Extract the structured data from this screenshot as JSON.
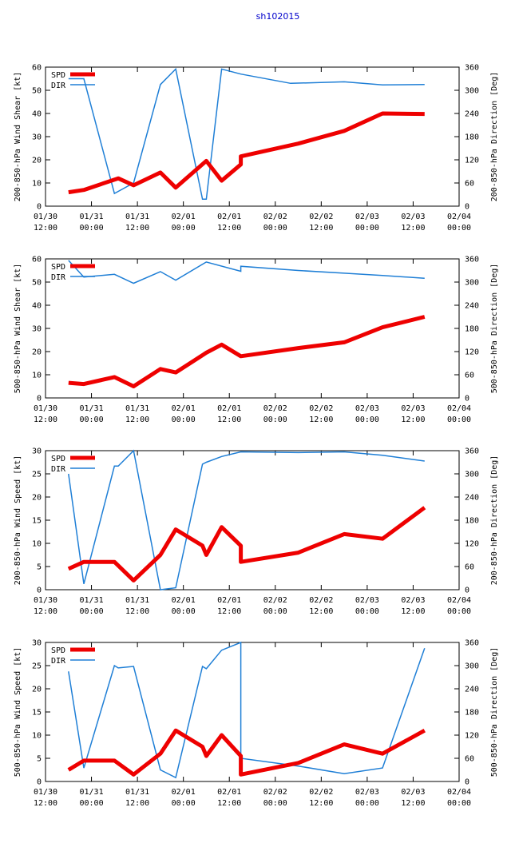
{
  "title": "sh102015",
  "colors": {
    "spd": "#ee0000",
    "dir": "#1f7fd6",
    "title": "#0000cc"
  },
  "x_ticks": [
    {
      "t": 0,
      "date": "01/30",
      "time": "12:00"
    },
    {
      "t": 12,
      "date": "01/31",
      "time": "00:00"
    },
    {
      "t": 24,
      "date": "01/31",
      "time": "12:00"
    },
    {
      "t": 36,
      "date": "02/01",
      "time": "00:00"
    },
    {
      "t": 48,
      "date": "02/01",
      "time": "12:00"
    },
    {
      "t": 60,
      "date": "02/02",
      "time": "00:00"
    },
    {
      "t": 72,
      "date": "02/02",
      "time": "12:00"
    },
    {
      "t": 84,
      "date": "02/03",
      "time": "00:00"
    },
    {
      "t": 96,
      "date": "02/03",
      "time": "12:00"
    },
    {
      "t": 108,
      "date": "02/04",
      "time": "00:00"
    }
  ],
  "chart_data": [
    {
      "type": "line",
      "ylabel": "200-850-hPa Wind Shear [kt]",
      "y2label": "200-850-hPa Direction [Deg]",
      "xlim": [
        0,
        108
      ],
      "ylim": [
        0,
        60
      ],
      "y2lim": [
        0,
        360
      ],
      "yticks": [
        0,
        10,
        20,
        30,
        40,
        50,
        60
      ],
      "y2ticks": [
        0,
        60,
        120,
        180,
        240,
        300,
        360
      ],
      "legend": [
        "SPD",
        "DIR"
      ],
      "spd": [
        [
          6,
          6
        ],
        [
          10,
          7
        ],
        [
          19,
          12
        ],
        [
          23,
          9
        ],
        [
          30,
          14.5
        ],
        [
          34,
          8
        ],
        [
          42,
          19.5
        ],
        [
          46,
          11
        ],
        [
          51,
          18
        ],
        [
          51,
          21.5
        ],
        [
          66,
          27
        ],
        [
          78,
          32.5
        ],
        [
          88,
          40
        ],
        [
          99,
          39.8
        ]
      ],
      "dir": [
        [
          6,
          330
        ],
        [
          10,
          330
        ],
        [
          18,
          33
        ],
        [
          23,
          60
        ],
        [
          30,
          315
        ],
        [
          34,
          355
        ],
        [
          41,
          18
        ],
        [
          42,
          18
        ],
        [
          46,
          355
        ],
        [
          51,
          342
        ],
        [
          64,
          318
        ],
        [
          78,
          322
        ],
        [
          88,
          314
        ],
        [
          99,
          315
        ]
      ]
    },
    {
      "type": "line",
      "ylabel": "500-850-hPa Wind Shear [kt]",
      "y2label": "500-850-hPa Direction [Deg]",
      "xlim": [
        0,
        108
      ],
      "ylim": [
        0,
        60
      ],
      "y2lim": [
        0,
        360
      ],
      "yticks": [
        0,
        10,
        20,
        30,
        40,
        50,
        60
      ],
      "y2ticks": [
        0,
        60,
        120,
        180,
        240,
        300,
        360
      ],
      "legend": [
        "SPD",
        "DIR"
      ],
      "spd": [
        [
          6,
          6.5
        ],
        [
          10,
          6
        ],
        [
          18,
          9
        ],
        [
          23,
          5
        ],
        [
          30,
          12.5
        ],
        [
          34,
          11
        ],
        [
          42,
          19.5
        ],
        [
          46,
          23
        ],
        [
          51,
          18
        ],
        [
          66,
          21.5
        ],
        [
          78,
          24
        ],
        [
          88,
          30.5
        ],
        [
          99,
          35
        ]
      ],
      "dir": [
        [
          6,
          356
        ],
        [
          10,
          313
        ],
        [
          18,
          320
        ],
        [
          23,
          297
        ],
        [
          30,
          327
        ],
        [
          34,
          305
        ],
        [
          42,
          352
        ],
        [
          51,
          328
        ],
        [
          51,
          341
        ],
        [
          66,
          330
        ],
        [
          78,
          323
        ],
        [
          88,
          317
        ],
        [
          99,
          310
        ]
      ]
    },
    {
      "type": "line",
      "ylabel": "200-850-hPa Wind Speed [kt]",
      "y2label": "200-850-hPa Direction [Deg]",
      "xlim": [
        0,
        108
      ],
      "ylim": [
        0,
        30
      ],
      "y2lim": [
        0,
        360
      ],
      "yticks": [
        0,
        5,
        10,
        15,
        20,
        25,
        30
      ],
      "y2ticks": [
        0,
        60,
        120,
        180,
        240,
        300,
        360
      ],
      "legend": [
        "SPD",
        "DIR"
      ],
      "spd": [
        [
          6,
          4.5
        ],
        [
          10,
          6
        ],
        [
          18,
          6
        ],
        [
          23,
          2
        ],
        [
          30,
          7.5
        ],
        [
          34,
          13
        ],
        [
          41,
          9.5
        ],
        [
          42,
          7.5
        ],
        [
          46,
          13.5
        ],
        [
          51,
          9.5
        ],
        [
          51,
          6
        ],
        [
          66,
          8
        ],
        [
          78,
          12
        ],
        [
          88,
          11
        ],
        [
          99,
          17.7
        ]
      ],
      "dir": [
        [
          6,
          300
        ],
        [
          10,
          15
        ],
        [
          18,
          320
        ],
        [
          19,
          320
        ],
        [
          23,
          360
        ],
        [
          30,
          0
        ],
        [
          34,
          5
        ],
        [
          41,
          325
        ],
        [
          42,
          330
        ],
        [
          46,
          345
        ],
        [
          51,
          357
        ],
        [
          66,
          355
        ],
        [
          78,
          357
        ],
        [
          88,
          348
        ],
        [
          99,
          333
        ]
      ]
    },
    {
      "type": "line",
      "ylabel": "500-850-hPa Wind Speed [kt]",
      "y2label": "500-850-hPa Direction [Deg]",
      "xlim": [
        0,
        108
      ],
      "ylim": [
        0,
        30
      ],
      "y2lim": [
        0,
        360
      ],
      "yticks": [
        0,
        5,
        10,
        15,
        20,
        25,
        30
      ],
      "y2ticks": [
        0,
        60,
        120,
        180,
        240,
        300,
        360
      ],
      "legend": [
        "SPD",
        "DIR"
      ],
      "spd": [
        [
          6,
          2.5
        ],
        [
          10,
          4.5
        ],
        [
          18,
          4.5
        ],
        [
          23,
          1.5
        ],
        [
          30,
          6
        ],
        [
          34,
          11
        ],
        [
          41,
          7.5
        ],
        [
          42,
          5.5
        ],
        [
          46,
          10
        ],
        [
          51,
          5.5
        ],
        [
          51,
          1.5
        ],
        [
          66,
          4
        ],
        [
          78,
          8
        ],
        [
          88,
          6
        ],
        [
          99,
          11
        ]
      ],
      "dir": [
        [
          6,
          285
        ],
        [
          10,
          35
        ],
        [
          18,
          300
        ],
        [
          19,
          294
        ],
        [
          23,
          298
        ],
        [
          30,
          30
        ],
        [
          34,
          10
        ],
        [
          41,
          298
        ],
        [
          42,
          292
        ],
        [
          46,
          340
        ],
        [
          51,
          360
        ],
        [
          51,
          60
        ],
        [
          66,
          40
        ],
        [
          78,
          20
        ],
        [
          88,
          35
        ],
        [
          99,
          345
        ]
      ]
    }
  ]
}
